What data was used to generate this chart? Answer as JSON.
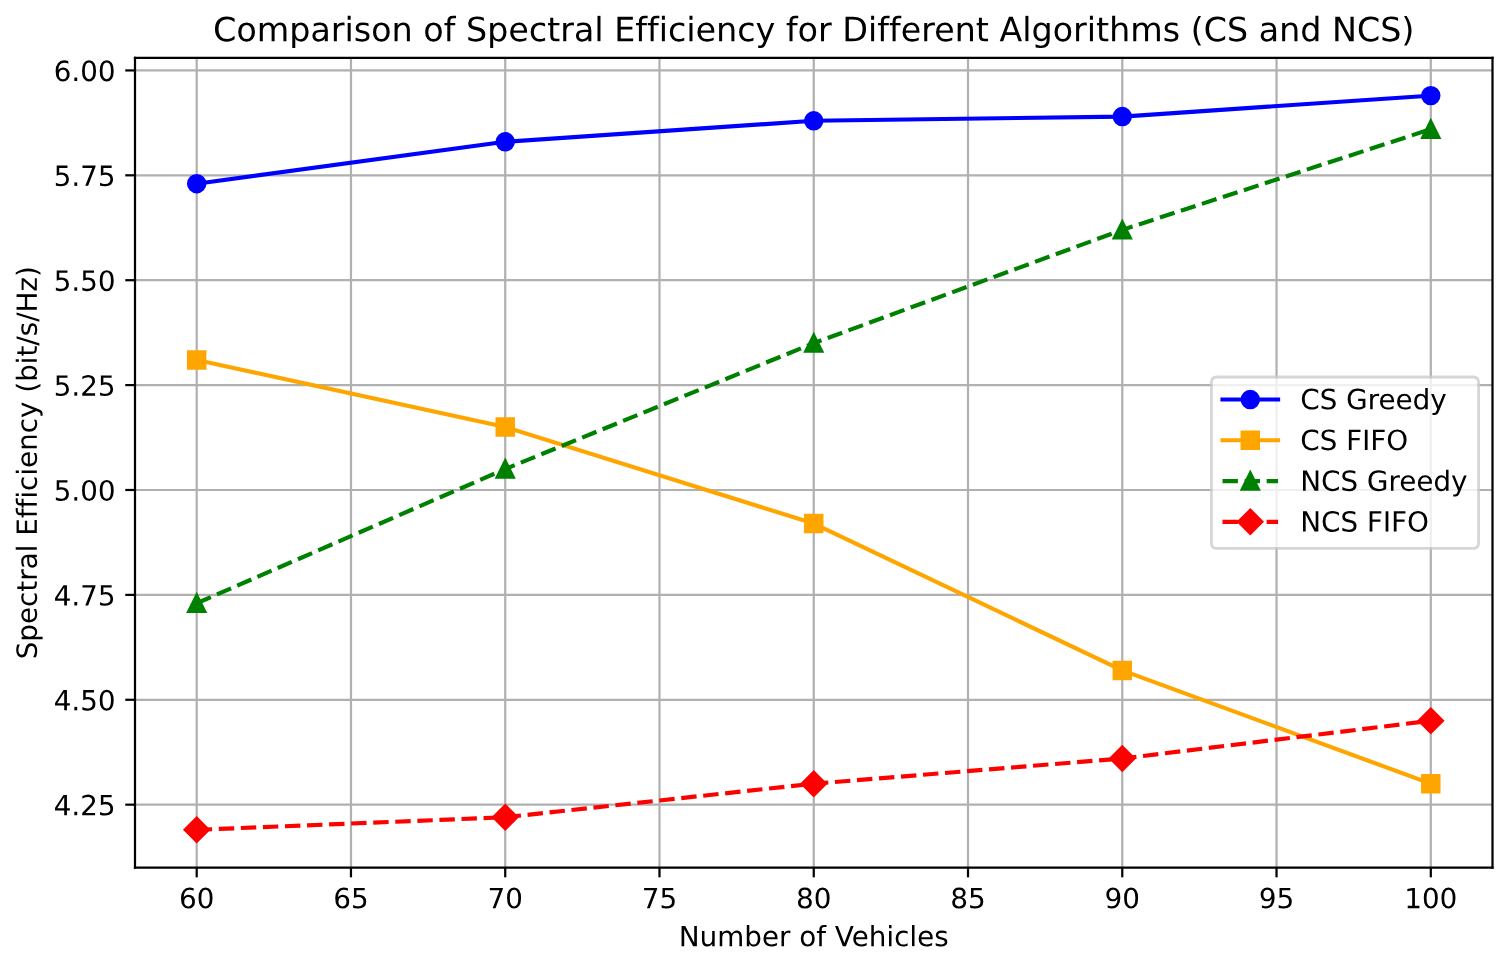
{
  "chart_data": {
    "type": "line",
    "title": "Comparison of Spectral Efficiency for Different Algorithms (CS and NCS)",
    "xlabel": "Number of Vehicles",
    "ylabel": "Spectral Efficiency (bit/s/Hz)",
    "x": [
      60,
      70,
      80,
      90,
      100
    ],
    "series": [
      {
        "name": "CS Greedy",
        "color": "#0000ff",
        "marker": "circle",
        "line_style": "solid",
        "values": [
          5.73,
          5.83,
          5.88,
          5.89,
          5.94
        ]
      },
      {
        "name": "CS FIFO",
        "color": "#ffa500",
        "marker": "square",
        "line_style": "solid",
        "values": [
          5.31,
          5.15,
          4.92,
          4.57,
          4.3
        ]
      },
      {
        "name": "NCS Greedy",
        "color": "#008000",
        "marker": "triangle",
        "line_style": "dashed",
        "values": [
          4.73,
          5.05,
          5.35,
          5.62,
          5.86
        ]
      },
      {
        "name": "NCS FIFO",
        "color": "#ff0000",
        "marker": "diamond",
        "line_style": "dashed",
        "values": [
          4.19,
          4.22,
          4.3,
          4.36,
          4.45
        ]
      }
    ],
    "xlim": [
      58,
      102
    ],
    "xticks": [
      60,
      65,
      70,
      75,
      80,
      85,
      90,
      95,
      100
    ],
    "ylim": [
      4.1,
      6.03
    ],
    "yticks": [
      {
        "value": 4.25,
        "label": "4.25"
      },
      {
        "value": 4.5,
        "label": "4.50"
      },
      {
        "value": 4.75,
        "label": "4.75"
      },
      {
        "value": 5.0,
        "label": "5.00"
      },
      {
        "value": 5.25,
        "label": "5.25"
      },
      {
        "value": 5.5,
        "label": "5.50"
      },
      {
        "value": 5.75,
        "label": "5.75"
      },
      {
        "value": 6.0,
        "label": "6.00"
      }
    ],
    "grid": true,
    "legend": "right"
  }
}
